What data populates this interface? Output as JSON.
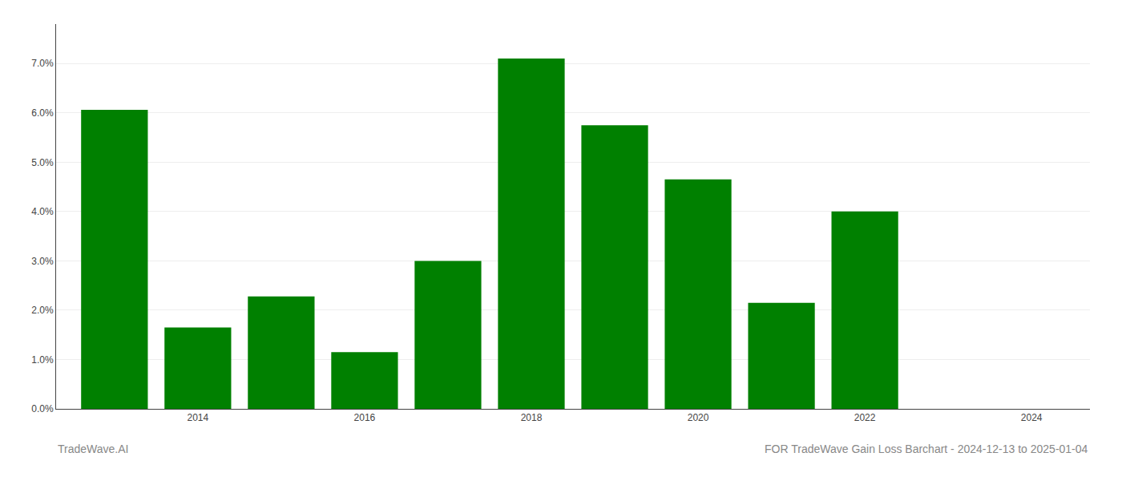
{
  "chart_data": {
    "type": "bar",
    "title": "FOR TradeWave Gain Loss Barchart - 2024-12-13 to 2025-01-04",
    "annotations": [
      "TradeWave.AI"
    ],
    "x": [
      2013,
      2014,
      2015,
      2016,
      2017,
      2018,
      2019,
      2020,
      2021,
      2022,
      2023
    ],
    "values": [
      0.0606,
      0.0165,
      0.0228,
      0.0115,
      0.03,
      0.071,
      0.0575,
      0.0465,
      0.0215,
      0.04,
      0.0
    ],
    "color": "#008000",
    "xlim": [
      2012.3,
      2024.7
    ],
    "xticks": [
      2014,
      2016,
      2018,
      2020,
      2022,
      2024
    ],
    "ylim": [
      0.0,
      0.078
    ],
    "yticks": [
      {
        "value": 0.0,
        "label": "0.0%"
      },
      {
        "value": 0.01,
        "label": "1.0%"
      },
      {
        "value": 0.02,
        "label": "2.0%"
      },
      {
        "value": 0.03,
        "label": "3.0%"
      },
      {
        "value": 0.04,
        "label": "4.0%"
      },
      {
        "value": 0.05,
        "label": "5.0%"
      },
      {
        "value": 0.06,
        "label": "6.0%"
      },
      {
        "value": 0.07,
        "label": "7.0%"
      }
    ],
    "grid": true
  }
}
